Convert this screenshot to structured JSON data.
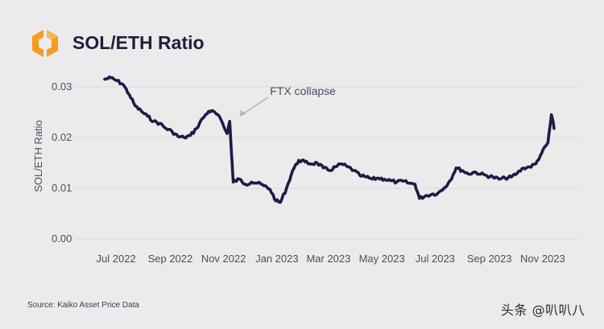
{
  "header": {
    "title": "SOL/ETH Ratio",
    "logo_icon": "kaiko-logo-icon"
  },
  "colors": {
    "line": "#1c1d45",
    "logo": "#f39c1f",
    "background": "#ebebeb",
    "grid": "#d6d6d6"
  },
  "chart_data": {
    "type": "line",
    "title": "SOL/ETH Ratio",
    "xlabel": "",
    "ylabel": "SOL/ETH Ratio",
    "ylim": [
      0,
      0.03
    ],
    "grid": true,
    "x_ticks": [
      "Jul 2022",
      "Sep 2022",
      "Nov 2022",
      "Jan 2023",
      "Mar 2023",
      "May 2023",
      "Jul 2023",
      "Sep 2023",
      "Nov 2023"
    ],
    "y_ticks": [
      "0.03",
      "0.02",
      "0.01",
      "0.00"
    ],
    "annotations": [
      {
        "text": "FTX collapse",
        "x": "2022-11-08",
        "y": 0.0232
      }
    ],
    "series": [
      {
        "values": [
          [
            "2022-06-18",
            0.0315
          ],
          [
            "2022-06-25",
            0.0318
          ],
          [
            "2022-07-02",
            0.0312
          ],
          [
            "2022-07-09",
            0.0305
          ],
          [
            "2022-07-16",
            0.0285
          ],
          [
            "2022-07-23",
            0.0262
          ],
          [
            "2022-07-30",
            0.0252
          ],
          [
            "2022-08-06",
            0.0242
          ],
          [
            "2022-08-13",
            0.0232
          ],
          [
            "2022-08-20",
            0.0228
          ],
          [
            "2022-08-27",
            0.0218
          ],
          [
            "2022-09-03",
            0.0212
          ],
          [
            "2022-09-10",
            0.0202
          ],
          [
            "2022-09-17",
            0.02
          ],
          [
            "2022-09-24",
            0.0204
          ],
          [
            "2022-10-01",
            0.0218
          ],
          [
            "2022-10-08",
            0.0238
          ],
          [
            "2022-10-15",
            0.0252
          ],
          [
            "2022-10-22",
            0.025
          ],
          [
            "2022-10-29",
            0.0235
          ],
          [
            "2022-11-05",
            0.0208
          ],
          [
            "2022-11-08",
            0.0232
          ],
          [
            "2022-11-10",
            0.017
          ],
          [
            "2022-11-12",
            0.0112
          ],
          [
            "2022-11-19",
            0.0118
          ],
          [
            "2022-11-26",
            0.0108
          ],
          [
            "2022-12-03",
            0.0112
          ],
          [
            "2022-12-10",
            0.011
          ],
          [
            "2022-12-17",
            0.0105
          ],
          [
            "2022-12-24",
            0.0098
          ],
          [
            "2022-12-31",
            0.0075
          ],
          [
            "2023-01-05",
            0.0072
          ],
          [
            "2023-01-12",
            0.01
          ],
          [
            "2023-01-19",
            0.0135
          ],
          [
            "2023-01-26",
            0.0155
          ],
          [
            "2023-02-02",
            0.0152
          ],
          [
            "2023-02-09",
            0.0148
          ],
          [
            "2023-02-16",
            0.015
          ],
          [
            "2023-02-23",
            0.014
          ],
          [
            "2023-03-02",
            0.0135
          ],
          [
            "2023-03-09",
            0.0142
          ],
          [
            "2023-03-16",
            0.0148
          ],
          [
            "2023-03-23",
            0.0142
          ],
          [
            "2023-03-30",
            0.0135
          ],
          [
            "2023-04-06",
            0.0125
          ],
          [
            "2023-04-13",
            0.0122
          ],
          [
            "2023-04-20",
            0.0118
          ],
          [
            "2023-04-27",
            0.012
          ],
          [
            "2023-05-04",
            0.0118
          ],
          [
            "2023-05-11",
            0.0115
          ],
          [
            "2023-05-18",
            0.0112
          ],
          [
            "2023-05-25",
            0.0114
          ],
          [
            "2023-06-01",
            0.011
          ],
          [
            "2023-06-08",
            0.0108
          ],
          [
            "2023-06-13",
            0.008
          ],
          [
            "2023-06-20",
            0.0085
          ],
          [
            "2023-06-27",
            0.0088
          ],
          [
            "2023-07-04",
            0.009
          ],
          [
            "2023-07-11",
            0.01
          ],
          [
            "2023-07-18",
            0.0115
          ],
          [
            "2023-07-25",
            0.014
          ],
          [
            "2023-08-01",
            0.0135
          ],
          [
            "2023-08-08",
            0.0128
          ],
          [
            "2023-08-15",
            0.0132
          ],
          [
            "2023-08-22",
            0.0128
          ],
          [
            "2023-08-29",
            0.0125
          ],
          [
            "2023-09-05",
            0.0122
          ],
          [
            "2023-09-12",
            0.0118
          ],
          [
            "2023-09-19",
            0.012
          ],
          [
            "2023-09-26",
            0.0122
          ],
          [
            "2023-10-03",
            0.013
          ],
          [
            "2023-10-10",
            0.014
          ],
          [
            "2023-10-17",
            0.0142
          ],
          [
            "2023-10-24",
            0.0148
          ],
          [
            "2023-10-31",
            0.017
          ],
          [
            "2023-11-07",
            0.019
          ],
          [
            "2023-11-11",
            0.0245
          ],
          [
            "2023-11-14",
            0.0218
          ]
        ]
      }
    ]
  },
  "footer": {
    "source": "Source: Kaiko Asset Price Data",
    "watermark": "头条 @叭叭八"
  }
}
